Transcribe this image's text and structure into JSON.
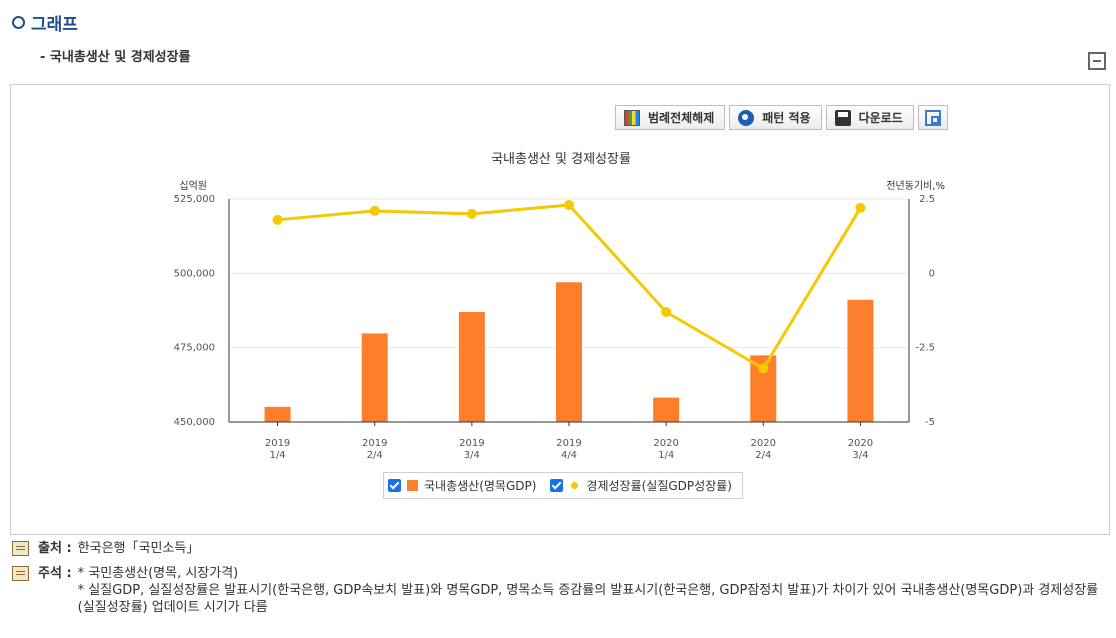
{
  "section": {
    "title": "그래프",
    "subtitle": "- 국내총생산 및 경제성장률"
  },
  "toolbar": {
    "legend_toggle": "범례전체해제",
    "pattern_apply": "패턴 적용",
    "download": "다운로드"
  },
  "icons": {
    "section": "circle-icon",
    "collapse": "minus-box-icon",
    "legend_toggle": "bar-chart-icon",
    "pattern_apply": "refresh-icon",
    "download": "save-icon",
    "fullscreen": "expand-icon",
    "note": "memo-icon"
  },
  "colors": {
    "bar": "#fd7f2c",
    "line": "#f5c800",
    "title": "#1f4e8c"
  },
  "chart_data": {
    "type": "bar+line",
    "title": "국내총생산 및 경제성장률",
    "categories": [
      [
        "2019",
        "1/4"
      ],
      [
        "2019",
        "2/4"
      ],
      [
        "2019",
        "3/4"
      ],
      [
        "2019",
        "4/4"
      ],
      [
        "2020",
        "1/4"
      ],
      [
        "2020",
        "2/4"
      ],
      [
        "2020",
        "3/4"
      ]
    ],
    "y_left": {
      "label": "십억원",
      "range": [
        450000,
        525000
      ],
      "ticks": [
        450000,
        475000,
        500000,
        525000
      ],
      "tick_labels": [
        "450,000",
        "475,000",
        "500,000",
        "525,000"
      ]
    },
    "y_right": {
      "label": "전년동기비,%",
      "range": [
        -5,
        2.5
      ],
      "ticks": [
        -5,
        -2.5,
        0,
        2.5
      ],
      "tick_labels": [
        "-5",
        "-2.5",
        "0",
        "2.5"
      ]
    },
    "series": [
      {
        "name": "국내총생산(명목GDP)",
        "type": "bar",
        "axis": "left",
        "values": [
          455100,
          479800,
          487000,
          497000,
          458200,
          472400,
          491100
        ]
      },
      {
        "name": "경제성장률(실질GDP성장률)",
        "type": "line",
        "axis": "right",
        "values": [
          1.8,
          2.1,
          2.0,
          2.3,
          -1.3,
          -3.2,
          2.2
        ]
      }
    ],
    "grid": true,
    "legend_position": "bottom"
  },
  "notes": {
    "source_key": "출처 :",
    "source_text": "한국은행「국민소득」",
    "remark_key": "주석 :",
    "remark_lines": [
      "* 국민총생산(명목, 시장가격)",
      "* 실질GDP, 실질성장률은 발표시기(한국은행, GDP속보치 발표)와 명목GDP, 명목소득 증감률의 발표시기(한국은행, GDP잠정치 발표)가 차이가 있어 국내총생산(명목GDP)과 경제성장률(실질성장률) 업데이트 시기가 다름"
    ]
  }
}
